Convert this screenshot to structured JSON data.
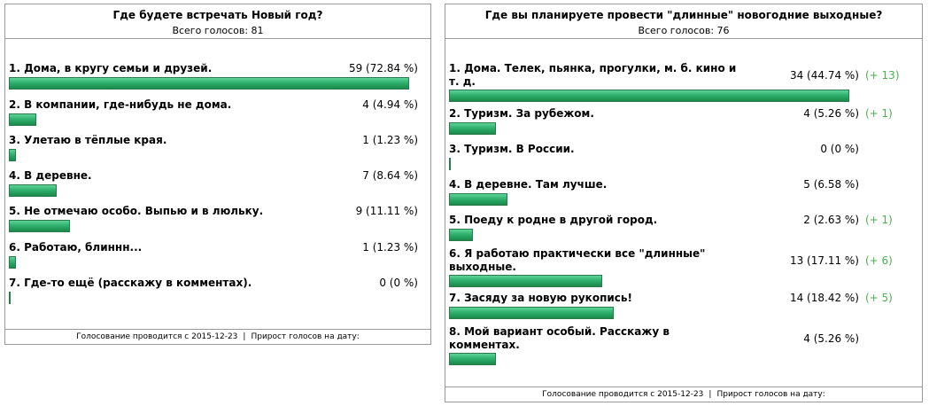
{
  "poll1": {
    "title": "Где будете встречать Новый год?",
    "total": "Всего голосов: 81",
    "footer_started": "Голосование проводится с 2015-12-23",
    "footer_sep": "|",
    "footer_growth": "Прирост голосов на дату:",
    "options": [
      {
        "label": "1. Дома, в кругу семьи и друзей.",
        "count": "59 (72.84 %)",
        "percent": 72.84
      },
      {
        "label": "2. В компании, где-нибудь не дома.",
        "count": "4 (4.94 %)",
        "percent": 4.94
      },
      {
        "label": "3. Улетаю в тёплые края.",
        "count": "1 (1.23 %)",
        "percent": 1.23
      },
      {
        "label": "4. В деревне.",
        "count": "7 (8.64 %)",
        "percent": 8.64
      },
      {
        "label": "5. Не отмечаю особо. Выпью и в люльку.",
        "count": "9 (11.11 %)",
        "percent": 11.11
      },
      {
        "label": "6. Работаю, блиннн...",
        "count": "1 (1.23 %)",
        "percent": 1.23
      },
      {
        "label": "7. Где-то ещё (расскажу в комментах).",
        "count": "0 (0 %)",
        "percent": 0
      }
    ]
  },
  "poll2": {
    "title": "Где вы планируете провести \"длинные\" новогодние выходные?",
    "total": "Всего голосов: 76",
    "footer_started": "Голосование проводится с 2015-12-23",
    "footer_sep": "|",
    "footer_growth": "Прирост голосов на дату:",
    "accent_color": "#4caf50",
    "options": [
      {
        "label": "1. Дома. Телек, пьянка, прогулки, м. б. кино и т. д.",
        "count": "34 (44.74 %)",
        "delta": "(+ 13)",
        "percent": 44.74
      },
      {
        "label": "2. Туризм. За рубежом.",
        "count": "4 (5.26 %)",
        "delta": "(+ 1)",
        "percent": 5.26
      },
      {
        "label": "3. Туризм. В России.",
        "count": "0 (0 %)",
        "delta": "",
        "percent": 0
      },
      {
        "label": "4. В деревне. Там лучше.",
        "count": "5 (6.58 %)",
        "delta": "",
        "percent": 6.58
      },
      {
        "label": "5. Поеду к родне в другой город.",
        "count": "2 (2.63 %)",
        "delta": "(+ 1)",
        "percent": 2.63
      },
      {
        "label": "6. Я работаю практически все \"длинные\" выходные.",
        "count": "13 (17.11 %)",
        "delta": "(+ 6)",
        "percent": 17.11
      },
      {
        "label": "7. Засяду за новую рукопись!",
        "count": "14 (18.42 %)",
        "delta": "(+ 5)",
        "percent": 18.42
      },
      {
        "label": "8. Мой вариант особый. Расскажу в комментах.",
        "count": "4 (5.26 %)",
        "delta": "",
        "percent": 5.26
      }
    ]
  }
}
